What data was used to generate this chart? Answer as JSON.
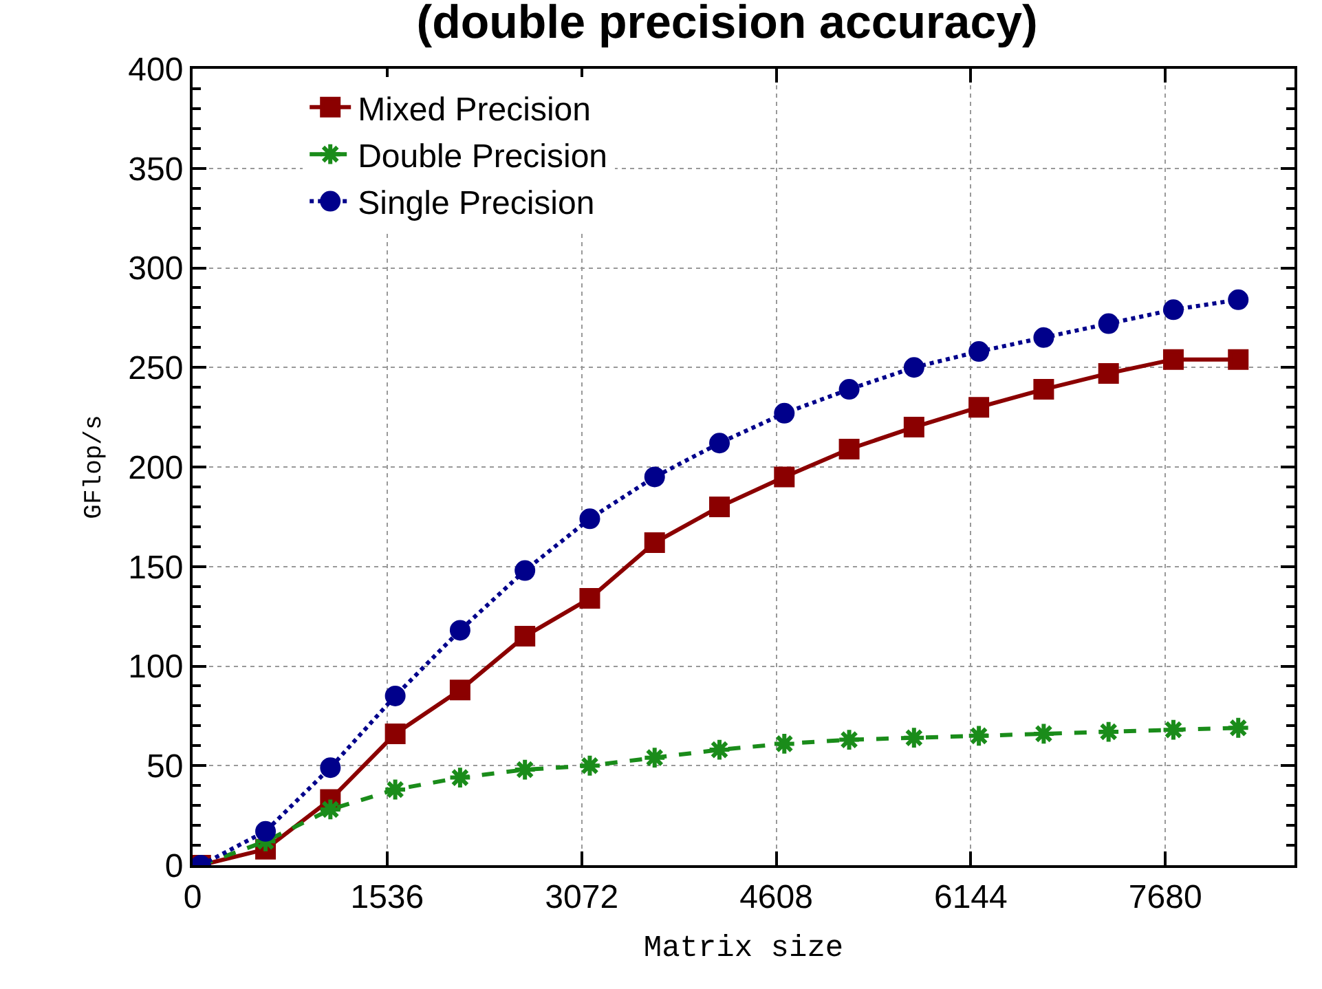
{
  "chart_data": {
    "type": "line",
    "title": "(double precision accuracy)",
    "xlabel": "Matrix size",
    "ylabel": "GFlop/s",
    "x": [
      64,
      576,
      1088,
      1600,
      2112,
      2624,
      3136,
      3648,
      4160,
      4672,
      5184,
      5696,
      6208,
      6720,
      7232,
      7744,
      8256
    ],
    "series": [
      {
        "name": "Mixed Precision",
        "color": "#8b0000",
        "marker": "square",
        "line_style": "solid",
        "values": [
          0,
          8,
          33,
          66,
          88,
          115,
          134,
          162,
          180,
          195,
          209,
          220,
          230,
          239,
          247,
          254,
          254
        ]
      },
      {
        "name": "Double Precision",
        "color": "#1a8c1a",
        "marker": "cross",
        "line_style": "dashed",
        "values": [
          0,
          12,
          28,
          38,
          44,
          48,
          50,
          54,
          58,
          61,
          63,
          64,
          65,
          66,
          67,
          68,
          69
        ]
      },
      {
        "name": "Single Precision",
        "color": "#00008b",
        "marker": "circle",
        "line_style": "dotted",
        "values": [
          0,
          17,
          49,
          85,
          118,
          148,
          174,
          195,
          212,
          227,
          239,
          250,
          258,
          265,
          272,
          279,
          284
        ]
      }
    ],
    "xlim": [
      0,
      8700
    ],
    "xticks": [
      0,
      1536,
      3072,
      4608,
      6144,
      7680
    ],
    "ylim": [
      0,
      400
    ],
    "yticks": [
      0,
      50,
      100,
      150,
      200,
      250,
      300,
      350,
      400
    ],
    "grid": true,
    "legend": "top left"
  }
}
